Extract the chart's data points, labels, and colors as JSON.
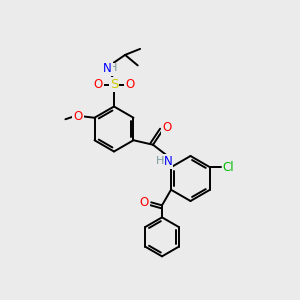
{
  "bg_color": "#ebebeb",
  "colors": {
    "O": "#ff0000",
    "N": "#0000ff",
    "S": "#cccc00",
    "Cl": "#00bb00",
    "C": "#000000",
    "H": "#7a9a9a"
  },
  "lw": 1.4,
  "fontsize": 8.5
}
